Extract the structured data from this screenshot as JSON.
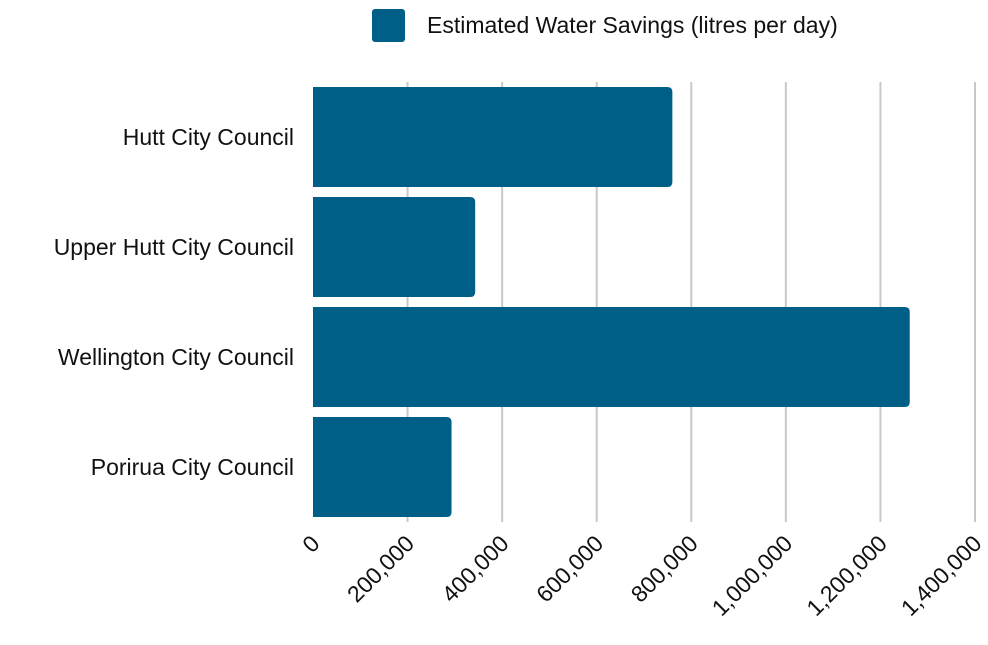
{
  "chart_data": {
    "type": "bar",
    "orientation": "horizontal",
    "categories": [
      "Hutt City Council",
      "Upper Hutt City Council",
      "Wellington City Council",
      "Porirua City Council"
    ],
    "series": [
      {
        "name": "Estimated Water Savings (litres per day)",
        "values": [
          760000,
          343000,
          1262000,
          293000
        ],
        "color": "#005f87"
      }
    ],
    "xlim": [
      0,
      1400000
    ],
    "xticks": [
      0,
      200000,
      400000,
      600000,
      800000,
      1000000,
      1200000,
      1400000
    ],
    "xtick_labels": [
      "0",
      "200,000",
      "400,000",
      "600,000",
      "800,000",
      "1,000,000",
      "1,200,000",
      "1,400,000"
    ],
    "grid": "vertical",
    "legend_position": "top"
  }
}
